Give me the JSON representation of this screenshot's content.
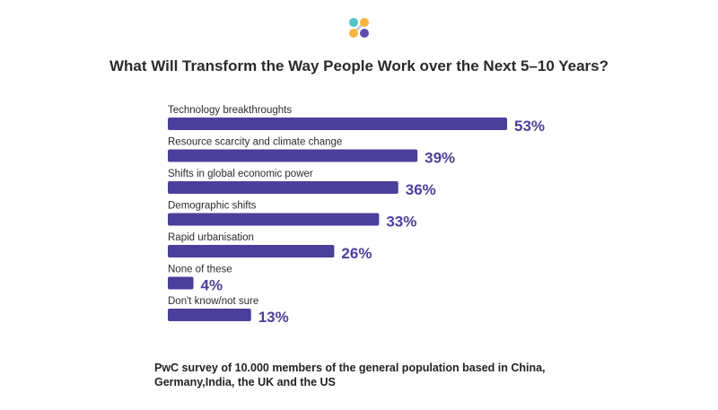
{
  "title": "What Will Transform the Way People Work over the Next 5–10 Years?",
  "caption": "PwC survey of 10.000 members of the general population based in China, Germany,India, the UK and the US",
  "colors": {
    "bar": "#4b3f9c",
    "value_text": "#4b3f9c",
    "logo_teal": "#4fc3c6",
    "logo_yellow": "#f6b63e",
    "logo_purple": "#5b4fa8"
  },
  "logo": {
    "icon": "pwc-style-dots-logo-icon"
  },
  "chart_data": {
    "type": "bar",
    "orientation": "horizontal",
    "categories": [
      "Technology breakthroughts",
      "Resource scarcity and climate change",
      "Shifts in global economic power",
      "Demographic shifts",
      "Rapid urbanisation",
      "None of these",
      "Don't know/not sure"
    ],
    "values": [
      53,
      39,
      36,
      33,
      26,
      4,
      13
    ],
    "value_labels": [
      "53%",
      "39%",
      "36%",
      "33%",
      "26%",
      "4%",
      "13%"
    ],
    "unit": "%",
    "xlim": [
      0,
      53
    ],
    "grid": false,
    "legend": "none"
  }
}
